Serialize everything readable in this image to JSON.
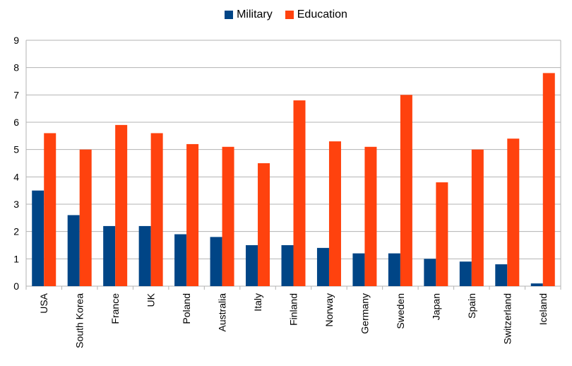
{
  "chart_data": {
    "type": "bar",
    "categories": [
      "USA",
      "South Korea",
      "France",
      "UK",
      "Poland",
      "Australia",
      "Italy",
      "Finland",
      "Norway",
      "Germany",
      "Sweden",
      "Japan",
      "Spain",
      "Switzerland",
      "Iceland"
    ],
    "series": [
      {
        "name": "Military",
        "color": "#004586",
        "values": [
          3.5,
          2.6,
          2.2,
          2.2,
          1.9,
          1.8,
          1.5,
          1.5,
          1.4,
          1.2,
          1.2,
          1.0,
          0.9,
          0.8,
          0.1
        ]
      },
      {
        "name": "Education",
        "color": "#ff420e",
        "values": [
          5.6,
          5.0,
          5.9,
          5.6,
          5.2,
          5.1,
          4.5,
          6.8,
          5.3,
          5.1,
          7.0,
          3.8,
          5.0,
          5.4,
          7.8
        ]
      }
    ],
    "yticks": [
      "0",
      "1",
      "2",
      "3",
      "4",
      "5",
      "6",
      "7",
      "8",
      "9"
    ],
    "ylim": [
      0,
      9
    ],
    "grid": true,
    "legend_position": "top-center",
    "title": "",
    "xlabel": "",
    "ylabel": ""
  }
}
